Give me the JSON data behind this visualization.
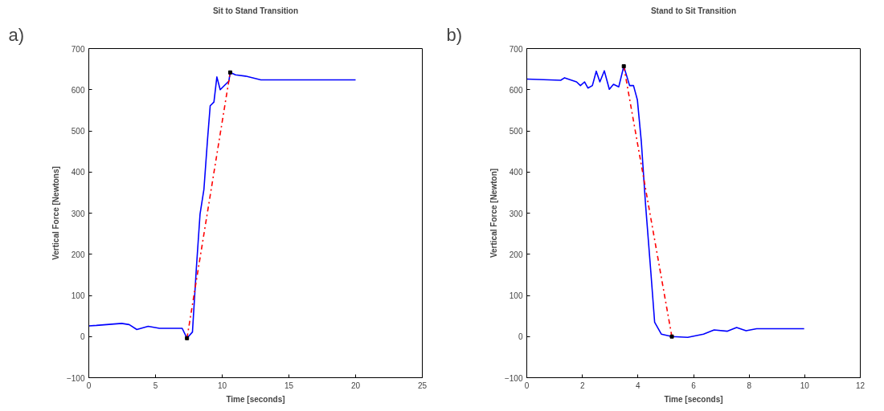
{
  "chart_data": [
    {
      "type": "line",
      "title": "Sit to Stand Transition",
      "xlabel": "Time [seconds]",
      "ylabel": "Vertical Force [Newtons]",
      "annotations": [
        "a)"
      ],
      "xlim": [
        0,
        25
      ],
      "xticks": [
        0,
        5,
        10,
        15,
        20,
        25
      ],
      "ylim": [
        -100,
        700
      ],
      "yticks": [
        -100,
        0,
        100,
        200,
        300,
        400,
        500,
        600,
        700
      ],
      "grid": false,
      "series": [
        {
          "color": "#0000ff",
          "line_style": "solid",
          "x": [
            0,
            0.57,
            2.46,
            3.03,
            3.6,
            4.45,
            5.3,
            7.0,
            7.36,
            7.77,
            8.06,
            8.34,
            8.63,
            8.9,
            9.1,
            9.38,
            9.6,
            9.85,
            10.5,
            10.6,
            11.0,
            11.75,
            12.9,
            14.8,
            20
          ],
          "values": [
            26,
            27,
            32,
            29,
            17,
            25,
            20,
            20,
            -4,
            11,
            165,
            298,
            358,
            479,
            561,
            570,
            631,
            600,
            621,
            642,
            636,
            633,
            624,
            624,
            624
          ]
        },
        {
          "color": "#ff0000",
          "line_style": "dashdot",
          "x": [
            7.36,
            10.6
          ],
          "values": [
            -4,
            642
          ]
        },
        {
          "type": "scatter",
          "marker": "square",
          "color": "#000000",
          "x": [
            7.36,
            10.6
          ],
          "values": [
            -4,
            642
          ]
        }
      ]
    },
    {
      "type": "line",
      "title": "Stand to Sit Transition",
      "xlabel": "Time [seconds]",
      "ylabel": "Vertical Force [Newton]",
      "annotations": [
        "b)"
      ],
      "xlim": [
        0,
        12
      ],
      "xticks": [
        0,
        2,
        4,
        6,
        8,
        10,
        12
      ],
      "ylim": [
        -100,
        700
      ],
      "yticks": [
        -100,
        0,
        100,
        200,
        300,
        400,
        500,
        600,
        700
      ],
      "grid": false,
      "series": [
        {
          "color": "#0000ff",
          "line_style": "solid",
          "x": [
            0,
            1.22,
            1.36,
            1.79,
            1.93,
            2.08,
            2.2,
            2.36,
            2.5,
            2.63,
            2.79,
            2.97,
            3.12,
            3.31,
            3.49,
            3.7,
            3.84,
            3.98,
            4.12,
            4.27,
            4.46,
            4.6,
            4.84,
            5.22,
            5.79,
            6.36,
            6.74,
            7.22,
            7.55,
            7.89,
            8.27,
            9.98
          ],
          "values": [
            626,
            623,
            629,
            619,
            610,
            619,
            604,
            610,
            645,
            619,
            646,
            601,
            613,
            607,
            657,
            610,
            610,
            575,
            475,
            324,
            160,
            35,
            6,
            0,
            -2,
            6,
            16,
            13,
            22,
            14,
            19,
            19
          ]
        },
        {
          "color": "#ff0000",
          "line_style": "dashdot",
          "x": [
            3.49,
            5.22
          ],
          "values": [
            657,
            0
          ]
        },
        {
          "type": "scatter",
          "marker": "square",
          "color": "#000000",
          "x": [
            3.49,
            5.22
          ],
          "values": [
            657,
            0
          ]
        }
      ]
    }
  ]
}
